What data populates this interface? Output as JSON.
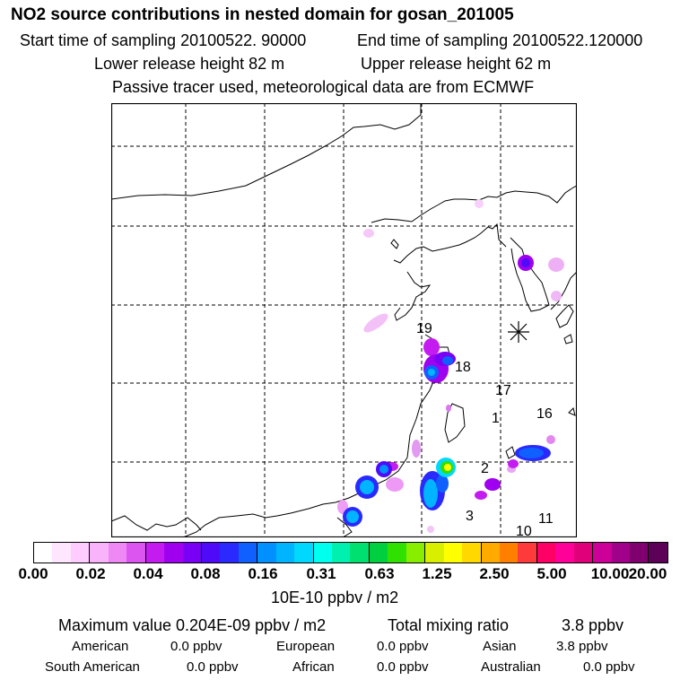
{
  "header": {
    "title": "NO2 source contributions in nested domain for gosan_201005",
    "start_label": "Start time of sampling 20100522. 90000",
    "end_label": "End time of sampling 20100522.120000",
    "lower_label": "Lower release height   82 m",
    "upper_label": "Upper release height   62 m",
    "note": "Passive tracer used, meteorological data are from ECMWF"
  },
  "map": {
    "receptor_symbol": "gosan-receptor",
    "trajectory_labels": [
      "19",
      "18",
      "17",
      "1",
      "16",
      "2",
      "3",
      "11",
      "10"
    ]
  },
  "colorbar": {
    "ticks": [
      "0.00",
      "0.02",
      "0.04",
      "0.08",
      "0.16",
      "0.31",
      "0.63",
      "1.25",
      "2.50",
      "5.00",
      "10.00",
      "20.00"
    ],
    "unit": "10E-10 ppbv / m2",
    "colors": [
      "#ffffff",
      "#ffe6ff",
      "#ffccff",
      "#f8b3fa",
      "#ee88f5",
      "#dd55f0",
      "#c41cf0",
      "#a000f0",
      "#7a00f5",
      "#4f0af8",
      "#2a2aff",
      "#1060ff",
      "#0090ff",
      "#00b4ff",
      "#00d8ff",
      "#00ffee",
      "#00f0b0",
      "#00e070",
      "#00d040",
      "#30e000",
      "#88ee00",
      "#d8f000",
      "#ffff00",
      "#ffd800",
      "#ffaa00",
      "#ff8000",
      "#ff3a3a",
      "#ff0066",
      "#ff0099",
      "#e0007a",
      "#cc0099",
      "#a0008a",
      "#800070",
      "#5c0058"
    ]
  },
  "stats": {
    "max_label": "Maximum value  0.204E-09 ppbv / m2",
    "total_label": "Total mixing ratio",
    "total_value": "3.8 ppbv",
    "regions": [
      {
        "name": "American",
        "value": "0.0 ppbv"
      },
      {
        "name": "European",
        "value": "0.0 ppbv"
      },
      {
        "name": "Asian",
        "value": "3.8 ppbv"
      },
      {
        "name": "South American",
        "value": "0.0 ppbv"
      },
      {
        "name": "African",
        "value": "0.0 ppbv"
      },
      {
        "name": "Australian",
        "value": "0.0 ppbv"
      }
    ]
  }
}
